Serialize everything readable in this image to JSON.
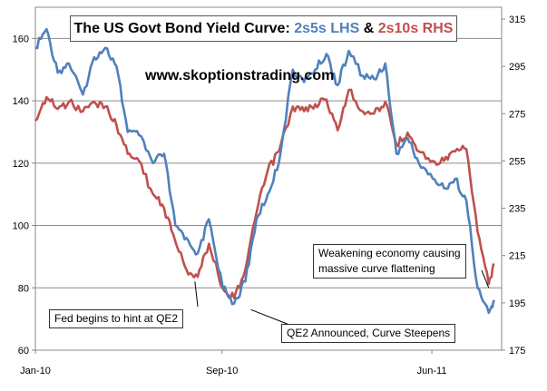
{
  "chart_data": {
    "type": "line",
    "title_parts": [
      "The US Govt Bond Yield Curve: ",
      "2s5s LHS",
      " & ",
      "2s10s RHS"
    ],
    "watermark": "www.skoptionstrading.com",
    "x_axis": {
      "range": [
        "2010-01",
        "2011-08"
      ],
      "tick_labels": [
        "Jan-10",
        "Sep-10",
        "Jun-11"
      ],
      "tick_positions": [
        "2010-01",
        "2010-09",
        "2011-06"
      ]
    },
    "y_left": {
      "range": [
        60,
        170
      ],
      "ticks": [
        60,
        80,
        100,
        120,
        140,
        160
      ]
    },
    "y_right": {
      "range": [
        175,
        320
      ],
      "ticks": [
        175,
        195,
        215,
        235,
        255,
        275,
        295,
        315
      ]
    },
    "grid": "horizontal",
    "colors": {
      "series_2s5s": "#4f81bd",
      "series_2s10s": "#c0504d"
    },
    "series": [
      {
        "name": "2s5s LHS",
        "axis": "left",
        "x": [
          2010.0,
          2010.04,
          2010.08,
          2010.12,
          2010.17,
          2010.21,
          2010.25,
          2010.29,
          2010.33,
          2010.37,
          2010.42,
          2010.46,
          2010.5,
          2010.54,
          2010.58,
          2010.62,
          2010.67,
          2010.71,
          2010.75,
          2010.79,
          2010.83,
          2010.87,
          2010.92,
          2010.96,
          2011.0,
          2011.04,
          2011.08,
          2011.12,
          2011.17,
          2011.21,
          2011.25,
          2011.29,
          2011.33,
          2011.37,
          2011.42,
          2011.46,
          2011.5,
          2011.54,
          2011.58,
          2011.62,
          2011.64
        ],
        "y": [
          157,
          163,
          149,
          152,
          142,
          154,
          157,
          151,
          130,
          129,
          120,
          123,
          100,
          96,
          91,
          102,
          80,
          75,
          82,
          102,
          110,
          120,
          150,
          146,
          150,
          155,
          145,
          156,
          148,
          147,
          152,
          123,
          128,
          120,
          115,
          112,
          115,
          108,
          80,
          72,
          76
        ]
      },
      {
        "name": "2s10s RHS",
        "axis": "right",
        "x": [
          2010.0,
          2010.04,
          2010.08,
          2010.12,
          2010.17,
          2010.21,
          2010.25,
          2010.29,
          2010.33,
          2010.37,
          2010.42,
          2010.46,
          2010.5,
          2010.54,
          2010.58,
          2010.62,
          2010.67,
          2010.71,
          2010.75,
          2010.79,
          2010.83,
          2010.87,
          2010.92,
          2010.96,
          2011.0,
          2011.04,
          2011.08,
          2011.12,
          2011.17,
          2011.21,
          2011.25,
          2011.29,
          2011.33,
          2011.37,
          2011.42,
          2011.46,
          2011.5,
          2011.54,
          2011.58,
          2011.62,
          2011.64
        ],
        "y": [
          272,
          282,
          277,
          280,
          276,
          280,
          278,
          270,
          258,
          255,
          241,
          235,
          221,
          209,
          206,
          220,
          201,
          197,
          209,
          233,
          251,
          259,
          278,
          276,
          279,
          281,
          268,
          285,
          276,
          275,
          280,
          262,
          267,
          259,
          255,
          255,
          259,
          260,
          225,
          203,
          211
        ]
      }
    ],
    "annotations": [
      {
        "text": "Fed begins to hint at QE2",
        "x": 2010.57,
        "y_left": 82
      },
      {
        "text": "QE2 Announced, Curve Steepens",
        "x": 2010.77,
        "y_left": 73
      },
      {
        "lines": [
          "Weakening economy causing",
          "massive curve flattening"
        ],
        "x": 2011.62,
        "y_left": 80
      }
    ]
  }
}
